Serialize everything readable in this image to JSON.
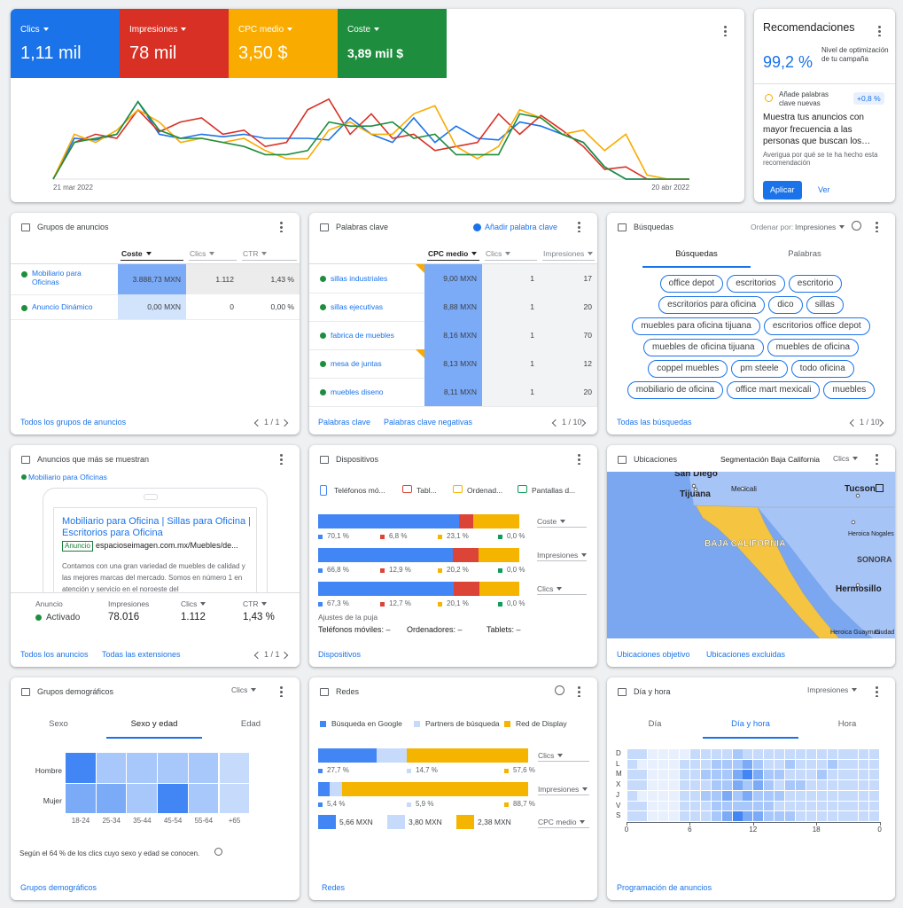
{
  "summary": {
    "type": "line",
    "x_start": "21 mar 2022",
    "x_end": "20 abr 2022",
    "series": [
      {
        "name": "Clics",
        "total": "1,11 mil",
        "color": "#1a73e8",
        "values": [
          0,
          50,
          48,
          55,
          95,
          55,
          50,
          55,
          52,
          55,
          50,
          50,
          50,
          48,
          75,
          55,
          45,
          75,
          45,
          65,
          50,
          48,
          70,
          65,
          55,
          45,
          15,
          0,
          0,
          0,
          0
        ]
      },
      {
        "name": "Impresiones",
        "total": "78 mil",
        "color": "#d93025",
        "values": [
          0,
          45,
          55,
          50,
          85,
          58,
          70,
          75,
          55,
          60,
          40,
          45,
          85,
          98,
          55,
          80,
          50,
          55,
          35,
          40,
          45,
          80,
          55,
          78,
          60,
          40,
          12,
          15,
          0,
          0,
          0
        ]
      },
      {
        "name": "CPC medio",
        "total": "3,50 $",
        "color": "#f9ab00",
        "values": [
          0,
          55,
          45,
          60,
          85,
          70,
          45,
          50,
          45,
          50,
          35,
          25,
          25,
          60,
          70,
          55,
          55,
          80,
          90,
          40,
          25,
          40,
          85,
          75,
          55,
          60,
          35,
          55,
          5,
          0,
          0
        ]
      },
      {
        "name": "Coste",
        "total": "3,89 mil $",
        "color": "#1e8e3e",
        "values": [
          0,
          45,
          50,
          55,
          95,
          60,
          50,
          50,
          45,
          40,
          30,
          30,
          35,
          70,
          65,
          65,
          70,
          50,
          55,
          30,
          30,
          30,
          80,
          75,
          55,
          45,
          15,
          0,
          0,
          0,
          0
        ]
      }
    ]
  },
  "recommendations": {
    "title": "Recomendaciones",
    "score": "99,2 %",
    "score_label": "Nivel de optimización de tu campaña",
    "item": "Añade palabras clave nuevas",
    "item_gain": "+0,8 %",
    "headline": "Muestra tus anuncios con mayor frecuencia a las personas que buscan los…",
    "sub": "Averigua por qué se te ha hecho esta recomendación",
    "apply": "Aplicar",
    "view": "Ver"
  },
  "ad_groups": {
    "title": "Grupos de anuncios",
    "columns": [
      "Coste",
      "Clics",
      "CTR"
    ],
    "rows": [
      [
        "Mobiliario para Oficinas",
        "3.888,73 MXN",
        "1.112",
        "1,43 %"
      ],
      [
        "Anuncio Dinámico",
        "0,00 MXN",
        "0",
        "0,00 %"
      ]
    ],
    "footer": "Todos los grupos de anuncios",
    "pager": "1 / 1"
  },
  "keywords": {
    "title": "Palabras clave",
    "add": "Añadir palabra clave",
    "columns": [
      "CPC medio",
      "Clics",
      "Impresiones"
    ],
    "rows": [
      [
        "sillas industriales",
        "9,00 MXN",
        "1",
        "17"
      ],
      [
        "sillas ejecutivas",
        "8,88 MXN",
        "1",
        "20"
      ],
      [
        "fabrica de muebles",
        "8,16 MXN",
        "1",
        "70"
      ],
      [
        "mesa de juntas",
        "8,13 MXN",
        "1",
        "12"
      ],
      [
        "muebles diseno",
        "8,11 MXN",
        "1",
        "20"
      ]
    ],
    "footer": [
      "Palabras clave",
      "Palabras clave negativas"
    ],
    "pager": "1 / 10"
  },
  "searches": {
    "title": "Búsquedas",
    "sort": "Ordenar por:",
    "sort_value": "Impresiones",
    "tabs": [
      "Búsquedas",
      "Palabras"
    ],
    "chips": [
      "office depot",
      "escritorios",
      "escritorio",
      "escritorios para oficina",
      "dico",
      "sillas",
      "muebles para oficina tijuana",
      "escritorios office depot",
      "muebles de oficina tijuana",
      "muebles de oficina",
      "coppel muebles",
      "pm steele",
      "todo oficina",
      "mobiliario de oficina",
      "office mart mexicali",
      "muebles"
    ],
    "footer": "Todas las búsquedas",
    "pager": "1 / 10"
  },
  "top_ads": {
    "title": "Anuncios que más se muestran",
    "group": "Mobiliario para Oficinas",
    "headline": "Mobiliario para Oficina | Sillas para Oficina | Escritorios para Oficina",
    "badge": "Anuncio",
    "url": "espacioseimagen.com.mx/Muebles/de...",
    "description": "Contamos con una gran variedad de muebles de calidad y las mejores marcas del mercado. Somos en número 1 en atención y servicio en el noroeste del",
    "stats": [
      {
        "label": "Anuncio",
        "value": "Activado"
      },
      {
        "label": "Impresiones",
        "value": "78.016"
      },
      {
        "label": "Clics",
        "value": "1.112"
      },
      {
        "label": "CTR",
        "value": "1,43 %"
      }
    ],
    "footer": [
      "Todos los anuncios",
      "Todas las extensiones"
    ],
    "pager": "1 / 1"
  },
  "devices": {
    "title": "Dispositivos",
    "legend": [
      {
        "name": "Teléfonos mó...",
        "color": "#4285f4"
      },
      {
        "name": "Tabl...",
        "color": "#db4437"
      },
      {
        "name": "Ordenad...",
        "color": "#f4b400"
      },
      {
        "name": "Pantallas d...",
        "color": "#0f9d58"
      }
    ],
    "bars": [
      {
        "metric": "Coste",
        "values": [
          70.1,
          6.8,
          23.1,
          0.0
        ],
        "value_labels": [
          "70,1 %",
          "6,8 %",
          "23,1 %",
          "0,0 %"
        ]
      },
      {
        "metric": "Impresiones",
        "values": [
          66.8,
          12.9,
          20.2,
          0.0
        ],
        "value_labels": [
          "66,8 %",
          "12,9 %",
          "20,2 %",
          "0,0 %"
        ]
      },
      {
        "metric": "Clics",
        "values": [
          67.3,
          12.7,
          20.1,
          0.0
        ],
        "value_labels": [
          "67,3 %",
          "12,7 %",
          "20,1 %",
          "0,0 %"
        ]
      }
    ],
    "bid_title": "Ajustes de la puja",
    "bids": [
      "Teléfonos móviles: –",
      "Ordenadores: –",
      "Tablets: –"
    ],
    "footer": "Dispositivos"
  },
  "locations": {
    "title": "Ubicaciones",
    "segment": "Segmentación Baja California",
    "metric": "Clics",
    "places": [
      "San Diego",
      "Mexicali",
      "Tijuana",
      "Tucson",
      "BAJA CALIFORNIA",
      "Heroica Nogales",
      "SONORA",
      "Hermosillo",
      "Heroica Guaymas",
      "Ciudad"
    ],
    "footer": [
      "Ubicaciones objetivo",
      "Ubicaciones excluidas"
    ]
  },
  "demographics": {
    "title": "Grupos demográficos",
    "metric": "Clics",
    "tabs": [
      "Sexo",
      "Sexo y edad",
      "Edad"
    ],
    "rows": [
      "Hombre",
      "Mujer"
    ],
    "ages": [
      "18-24",
      "25-34",
      "35-44",
      "45-54",
      "55-64",
      "+65"
    ],
    "values": [
      [
        4,
        2,
        2,
        2,
        2,
        1
      ],
      [
        3,
        3,
        2,
        4,
        2,
        1
      ]
    ],
    "note": "Según el 64 % de los clics cuyo sexo y edad se conocen.",
    "footer": "Grupos demográficos"
  },
  "networks": {
    "title": "Redes",
    "legend": [
      {
        "name": "Búsqueda en Google",
        "color": "#4285f4"
      },
      {
        "name": "Partners de búsqueda",
        "color": "#c6dafc"
      },
      {
        "name": "Red de Display",
        "color": "#f4b400"
      }
    ],
    "bars": [
      {
        "metric": "Clics",
        "values": [
          27.7,
          14.7,
          57.6
        ],
        "value_labels": [
          "27,7 %",
          "14,7 %",
          "57,6 %"
        ]
      },
      {
        "metric": "Impresiones",
        "values": [
          5.4,
          5.9,
          88.7
        ],
        "value_labels": [
          "5,4 %",
          "5,9 %",
          "88,7 %"
        ]
      }
    ],
    "cpc": {
      "metric": "CPC medio",
      "labels": [
        "5,66 MXN",
        "3,80 MXN",
        "2,38 MXN"
      ]
    },
    "footer": "Redes"
  },
  "day_hour": {
    "title": "Día y hora",
    "metric": "Impresiones",
    "tabs": [
      "Día",
      "Día y hora",
      "Hora"
    ],
    "days": [
      "D",
      "L",
      "M",
      "X",
      "J",
      "V",
      "S"
    ],
    "hour_ticks": [
      0,
      6,
      12,
      18,
      {
        "value": 24,
        "label": "0"
      }
    ],
    "values": [
      [
        1,
        1,
        0,
        0,
        0,
        0,
        1,
        1,
        1,
        1,
        2,
        1,
        1,
        1,
        1,
        1,
        1,
        1,
        1,
        1,
        1,
        1,
        1,
        1
      ],
      [
        1,
        0,
        0,
        0,
        0,
        1,
        1,
        1,
        2,
        2,
        2,
        3,
        2,
        1,
        1,
        2,
        1,
        1,
        1,
        2,
        1,
        1,
        1,
        1
      ],
      [
        1,
        1,
        0,
        0,
        0,
        1,
        1,
        2,
        2,
        2,
        3,
        4,
        3,
        2,
        2,
        1,
        1,
        1,
        2,
        1,
        1,
        1,
        1,
        1
      ],
      [
        1,
        1,
        0,
        0,
        0,
        1,
        1,
        1,
        2,
        2,
        3,
        2,
        3,
        2,
        1,
        2,
        2,
        1,
        1,
        1,
        1,
        1,
        1,
        1
      ],
      [
        1,
        0,
        0,
        0,
        0,
        1,
        1,
        2,
        2,
        3,
        2,
        3,
        2,
        2,
        2,
        1,
        1,
        1,
        1,
        1,
        1,
        1,
        1,
        1
      ],
      [
        1,
        1,
        0,
        0,
        0,
        1,
        1,
        1,
        2,
        2,
        2,
        2,
        2,
        2,
        1,
        1,
        1,
        1,
        1,
        1,
        1,
        1,
        1,
        1
      ],
      [
        1,
        1,
        0,
        0,
        0,
        1,
        1,
        1,
        2,
        3,
        4,
        3,
        3,
        2,
        2,
        2,
        1,
        1,
        1,
        1,
        1,
        1,
        1,
        1
      ]
    ],
    "footer": "Programación de anuncios"
  }
}
